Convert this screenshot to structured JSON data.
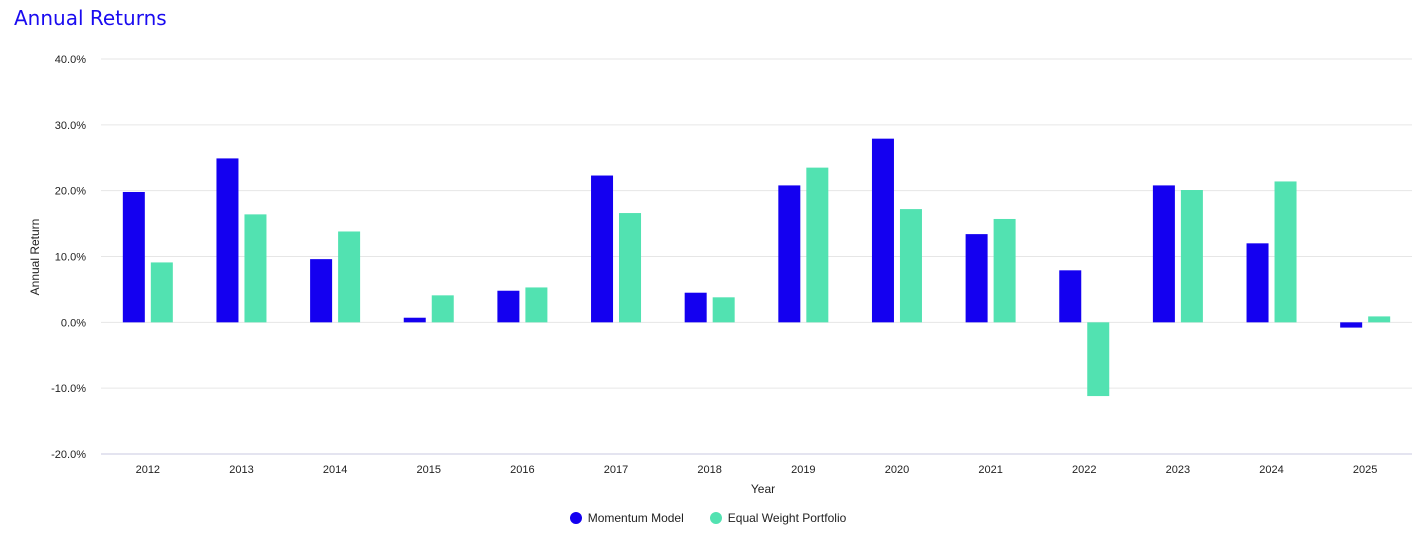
{
  "chart_data": {
    "type": "bar",
    "title": "Annual Returns",
    "xlabel": "Year",
    "ylabel": "Annual Return",
    "ylim": [
      -20,
      40
    ],
    "yticks": [
      -20,
      -10,
      0,
      10,
      20,
      30,
      40
    ],
    "ytick_labels": [
      "-20.0%",
      "-10.0%",
      "0.0%",
      "10.0%",
      "20.0%",
      "30.0%",
      "40.0%"
    ],
    "grid": true,
    "legend_position": "bottom",
    "categories": [
      "2012",
      "2013",
      "2014",
      "2015",
      "2016",
      "2017",
      "2018",
      "2019",
      "2020",
      "2021",
      "2022",
      "2023",
      "2024",
      "2025"
    ],
    "series": [
      {
        "name": "Momentum Model",
        "color": "#1400f0",
        "values": [
          19.8,
          24.9,
          9.6,
          0.7,
          4.8,
          22.3,
          4.5,
          20.8,
          27.9,
          13.4,
          7.9,
          20.8,
          12.0,
          -0.8
        ]
      },
      {
        "name": "Equal Weight Portfolio",
        "color": "#52e2b1",
        "values": [
          9.1,
          16.4,
          13.8,
          4.1,
          5.3,
          16.6,
          3.8,
          23.5,
          17.2,
          15.7,
          -11.2,
          20.1,
          21.4,
          0.9
        ]
      }
    ]
  }
}
